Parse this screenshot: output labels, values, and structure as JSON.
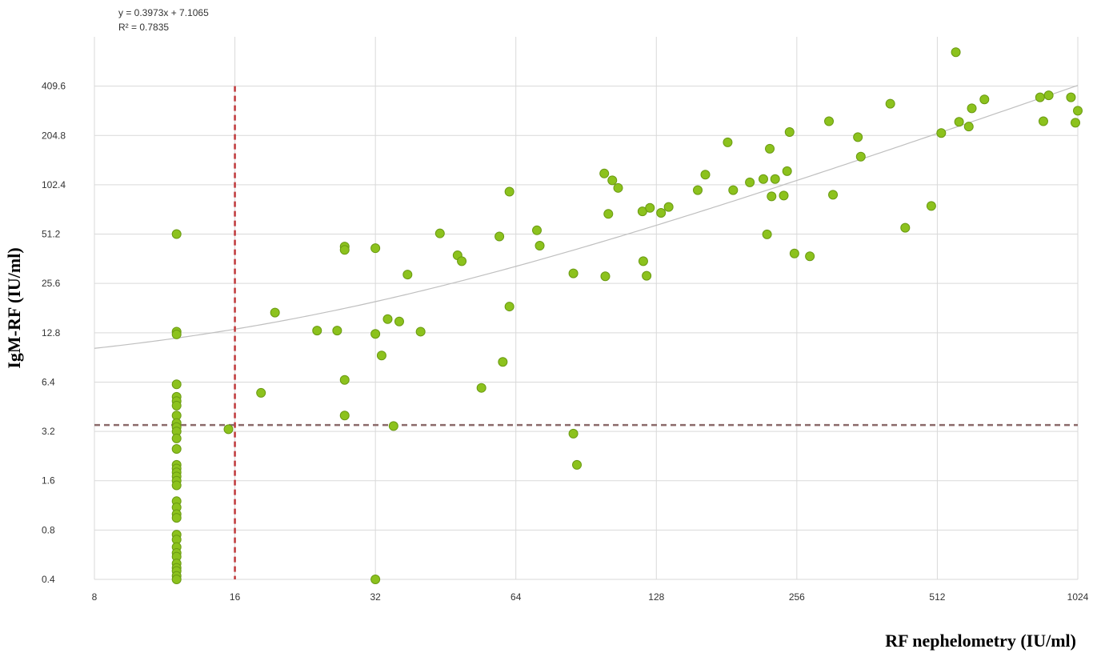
{
  "chart_data": {
    "type": "scatter",
    "xlabel": "RF nephelometry (IU/ml)",
    "ylabel": "IgM-RF (IU/ml)",
    "x_scale": "log2",
    "y_scale": "log2",
    "xlim": [
      8,
      1024
    ],
    "ylim": [
      0.4,
      819.2
    ],
    "x_ticks": [
      "8",
      "16",
      "32",
      "64",
      "128",
      "256",
      "512",
      "1024"
    ],
    "y_ticks": [
      "0.4",
      "0.8",
      "1.6",
      "3.2",
      "6.4",
      "12.8",
      "25.6",
      "51.2",
      "102.4",
      "204.8",
      "409.6"
    ],
    "grid": true,
    "equation": "y = 0.3973x + 7.1065",
    "r_squared": "R² = 0.7835",
    "trendline": {
      "slope": 0.3973,
      "intercept": 7.1065,
      "color": "#bfbfbf"
    },
    "threshold_lines": [
      {
        "axis": "x",
        "value": 16,
        "color": "#c0393b",
        "y_to": 409.6
      },
      {
        "axis": "y",
        "value": 3.5,
        "color": "#8b6a6a"
      }
    ],
    "marker_color": "#8cc21d",
    "marker_edge": "#6a9a12",
    "points": [
      [
        12,
        51.2
      ],
      [
        12,
        13
      ],
      [
        12,
        12.5
      ],
      [
        12,
        6.2
      ],
      [
        12,
        5.2
      ],
      [
        12,
        4.9
      ],
      [
        12,
        4.6
      ],
      [
        12,
        4.0
      ],
      [
        12,
        3.6
      ],
      [
        12,
        3.4
      ],
      [
        12,
        3.2
      ],
      [
        12,
        2.9
      ],
      [
        12,
        2.5
      ],
      [
        12,
        2.0
      ],
      [
        12,
        1.9
      ],
      [
        12,
        1.8
      ],
      [
        12,
        1.7
      ],
      [
        12,
        1.6
      ],
      [
        12,
        1.5
      ],
      [
        12,
        1.2
      ],
      [
        12,
        1.1
      ],
      [
        12,
        1.0
      ],
      [
        12,
        0.95
      ],
      [
        12,
        0.75
      ],
      [
        12,
        0.7
      ],
      [
        12,
        0.63
      ],
      [
        12,
        0.58
      ],
      [
        12,
        0.55
      ],
      [
        12,
        0.5
      ],
      [
        12,
        0.47
      ],
      [
        12,
        0.45
      ],
      [
        12,
        0.42
      ],
      [
        12,
        0.4
      ],
      [
        15.5,
        3.3
      ],
      [
        18.2,
        5.5
      ],
      [
        19.5,
        17
      ],
      [
        24,
        13.2
      ],
      [
        26.5,
        13.2
      ],
      [
        27.5,
        43
      ],
      [
        27.5,
        41
      ],
      [
        27.5,
        6.6
      ],
      [
        27.5,
        4.0
      ],
      [
        32,
        42
      ],
      [
        32,
        12.6
      ],
      [
        32,
        0.4
      ],
      [
        33,
        9.3
      ],
      [
        34,
        15.5
      ],
      [
        35,
        3.45
      ],
      [
        36,
        15
      ],
      [
        37.5,
        29
      ],
      [
        40,
        13
      ],
      [
        44,
        51.7
      ],
      [
        48,
        38
      ],
      [
        49,
        35
      ],
      [
        54,
        5.9
      ],
      [
        59,
        49.5
      ],
      [
        60,
        8.5
      ],
      [
        62,
        93
      ],
      [
        62,
        18.5
      ],
      [
        71,
        54
      ],
      [
        72,
        43.5
      ],
      [
        85,
        29.5
      ],
      [
        85,
        3.1
      ],
      [
        86.5,
        2.0
      ],
      [
        99,
        120
      ],
      [
        99.5,
        28.3
      ],
      [
        101,
        68
      ],
      [
        103,
        109
      ],
      [
        106,
        98
      ],
      [
        119.5,
        70.5
      ],
      [
        120,
        35
      ],
      [
        122,
        28.5
      ],
      [
        124,
        74
      ],
      [
        131,
        69
      ],
      [
        136,
        75
      ],
      [
        157,
        95
      ],
      [
        163,
        118
      ],
      [
        182,
        186
      ],
      [
        187,
        95
      ],
      [
        203,
        106
      ],
      [
        217,
        111
      ],
      [
        221,
        51
      ],
      [
        224,
        170
      ],
      [
        226,
        87
      ],
      [
        230,
        111
      ],
      [
        240,
        88
      ],
      [
        244,
        124
      ],
      [
        247,
        215
      ],
      [
        253,
        39
      ],
      [
        273,
        37.5
      ],
      [
        300,
        250
      ],
      [
        306,
        89
      ],
      [
        346,
        200
      ],
      [
        351,
        152
      ],
      [
        406,
        320
      ],
      [
        437,
        56
      ],
      [
        497,
        76
      ],
      [
        522,
        212
      ],
      [
        561,
        660
      ],
      [
        570,
        248
      ],
      [
        598,
        232
      ],
      [
        607,
        300
      ],
      [
        646,
        340
      ],
      [
        850,
        350
      ],
      [
        864,
        250
      ],
      [
        887,
        360
      ],
      [
        990,
        350
      ],
      [
        1012,
        245
      ],
      [
        1024,
        290
      ]
    ]
  }
}
